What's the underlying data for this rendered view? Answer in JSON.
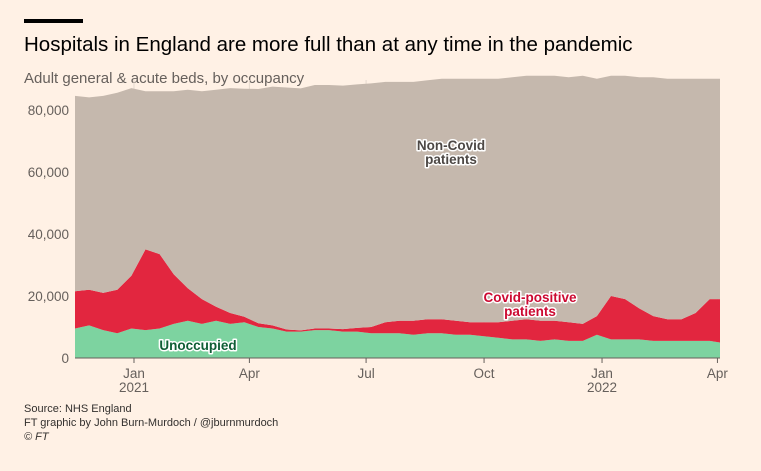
{
  "header": {
    "title": "Hospitals in England are more full than at any time in the pandemic",
    "subtitle": "Adult general & acute beds, by occupancy"
  },
  "footer": {
    "source": "Source: NHS England",
    "credit": "FT graphic by John Burn-Murdoch / @jburnmurdoch",
    "copyright": "© FT"
  },
  "colors": {
    "background": "#FFF1E5",
    "unoccupied": "#7DD3A0",
    "covid": "#E2263F",
    "non_covid": "#C5B8AD",
    "axis_text": "#66605C",
    "gridline": "#E6D9CE"
  },
  "chart_data": {
    "type": "area",
    "stacked": true,
    "x_start": "2020-11-16",
    "x_end": "2022-04-03",
    "xlim": [
      "2020-11-16",
      "2022-04-03"
    ],
    "ylim": [
      0,
      88000
    ],
    "y_ticks": [
      0,
      20000,
      40000,
      60000,
      80000
    ],
    "y_tick_labels": [
      "0",
      "20,000",
      "40,000",
      "60,000",
      "80,000"
    ],
    "x_ticks": [
      {
        "date": "2021-01-01",
        "label": "Jan",
        "year": "2021"
      },
      {
        "date": "2021-04-01",
        "label": "Apr",
        "year": ""
      },
      {
        "date": "2021-07-01",
        "label": "Jul",
        "year": ""
      },
      {
        "date": "2021-10-01",
        "label": "Oct",
        "year": ""
      },
      {
        "date": "2022-01-01",
        "label": "Jan",
        "year": "2022"
      },
      {
        "date": "2022-04-01",
        "label": "Apr",
        "year": ""
      }
    ],
    "grid": true,
    "dates": [
      "2020-11-16",
      "2020-11-27",
      "2020-12-08",
      "2020-12-19",
      "2020-12-30",
      "2021-01-10",
      "2021-01-21",
      "2021-02-01",
      "2021-02-12",
      "2021-02-23",
      "2021-03-06",
      "2021-03-17",
      "2021-03-28",
      "2021-04-08",
      "2021-04-19",
      "2021-04-30",
      "2021-05-11",
      "2021-05-22",
      "2021-06-02",
      "2021-06-13",
      "2021-06-24",
      "2021-07-05",
      "2021-07-16",
      "2021-07-27",
      "2021-08-07",
      "2021-08-18",
      "2021-08-29",
      "2021-09-09",
      "2021-09-20",
      "2021-10-01",
      "2021-10-12",
      "2021-10-23",
      "2021-11-03",
      "2021-11-14",
      "2021-11-25",
      "2021-12-06",
      "2021-12-17",
      "2021-12-28",
      "2022-01-08",
      "2022-01-19",
      "2022-01-30",
      "2022-02-10",
      "2022-02-21",
      "2022-03-04",
      "2022-03-15",
      "2022-03-26",
      "2022-04-03"
    ],
    "series": [
      {
        "name": "Unoccupied",
        "values": [
          9500,
          10500,
          9000,
          8000,
          9500,
          9000,
          9500,
          11000,
          12000,
          11000,
          12000,
          11000,
          11500,
          10000,
          9500,
          8500,
          8500,
          9000,
          9000,
          8500,
          8500,
          8000,
          8000,
          8000,
          7500,
          8000,
          8000,
          7500,
          7500,
          7000,
          6500,
          6000,
          6000,
          5500,
          6000,
          5500,
          5500,
          7500,
          6000,
          6000,
          6000,
          5500,
          5500,
          5500,
          5500,
          5500,
          5000
        ]
      },
      {
        "name": "Covid-positive patients",
        "values": [
          12000,
          11500,
          12000,
          14000,
          17000,
          26000,
          24000,
          16000,
          10500,
          8000,
          4500,
          3500,
          1800,
          1200,
          1000,
          700,
          400,
          500,
          500,
          800,
          1200,
          2000,
          3500,
          4000,
          4500,
          4500,
          4500,
          4500,
          4000,
          4500,
          5000,
          6000,
          6500,
          6500,
          6000,
          6000,
          5500,
          6000,
          14000,
          13000,
          10000,
          8000,
          7000,
          7000,
          9000,
          13500,
          14000
        ]
      },
      {
        "name": "Non-Covid patients",
        "values": [
          63000,
          62000,
          63500,
          63500,
          60500,
          51000,
          52500,
          59000,
          64000,
          67000,
          70000,
          72500,
          73500,
          75500,
          77000,
          78000,
          78000,
          78500,
          78500,
          78500,
          78500,
          78500,
          77500,
          77000,
          77000,
          77000,
          77500,
          78000,
          78500,
          78500,
          78500,
          78500,
          78500,
          79000,
          79000,
          79000,
          80000,
          76500,
          71000,
          72000,
          74500,
          77000,
          77500,
          77500,
          75500,
          71000,
          71000
        ]
      }
    ],
    "annotations": [
      {
        "text": "Non-Covid\npatients",
        "series": "Non-Covid patients"
      },
      {
        "text": "Covid-positive\npatients",
        "series": "Covid-positive patients"
      },
      {
        "text": "Unoccupied",
        "series": "Unoccupied"
      }
    ],
    "legend": "inline labels"
  }
}
